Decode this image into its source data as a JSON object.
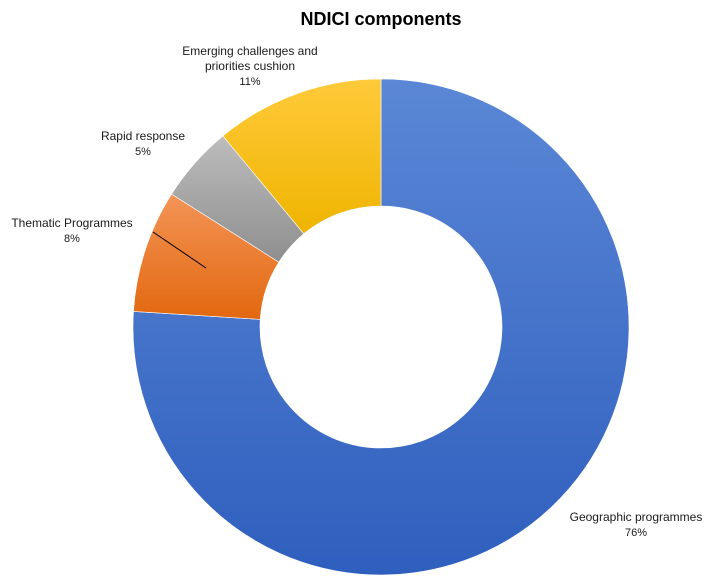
{
  "chart_data": {
    "type": "pie",
    "donut": true,
    "title": "NDICI components",
    "slices": [
      {
        "label": "Geographic programmes",
        "value": 76,
        "value_label": "76%",
        "color": "#4472C4"
      },
      {
        "label": "Thematic Programmes",
        "value": 8,
        "value_label": "8%",
        "color": "#ED7D31"
      },
      {
        "label": "Rapid response",
        "value": 5,
        "value_label": "5%",
        "color": "#A5A5A5"
      },
      {
        "label": "Emerging challenges and priorities cushion",
        "value": 11,
        "value_label": "11%",
        "color": "#FFC000"
      }
    ],
    "legend": "none",
    "label_position": "outside"
  }
}
